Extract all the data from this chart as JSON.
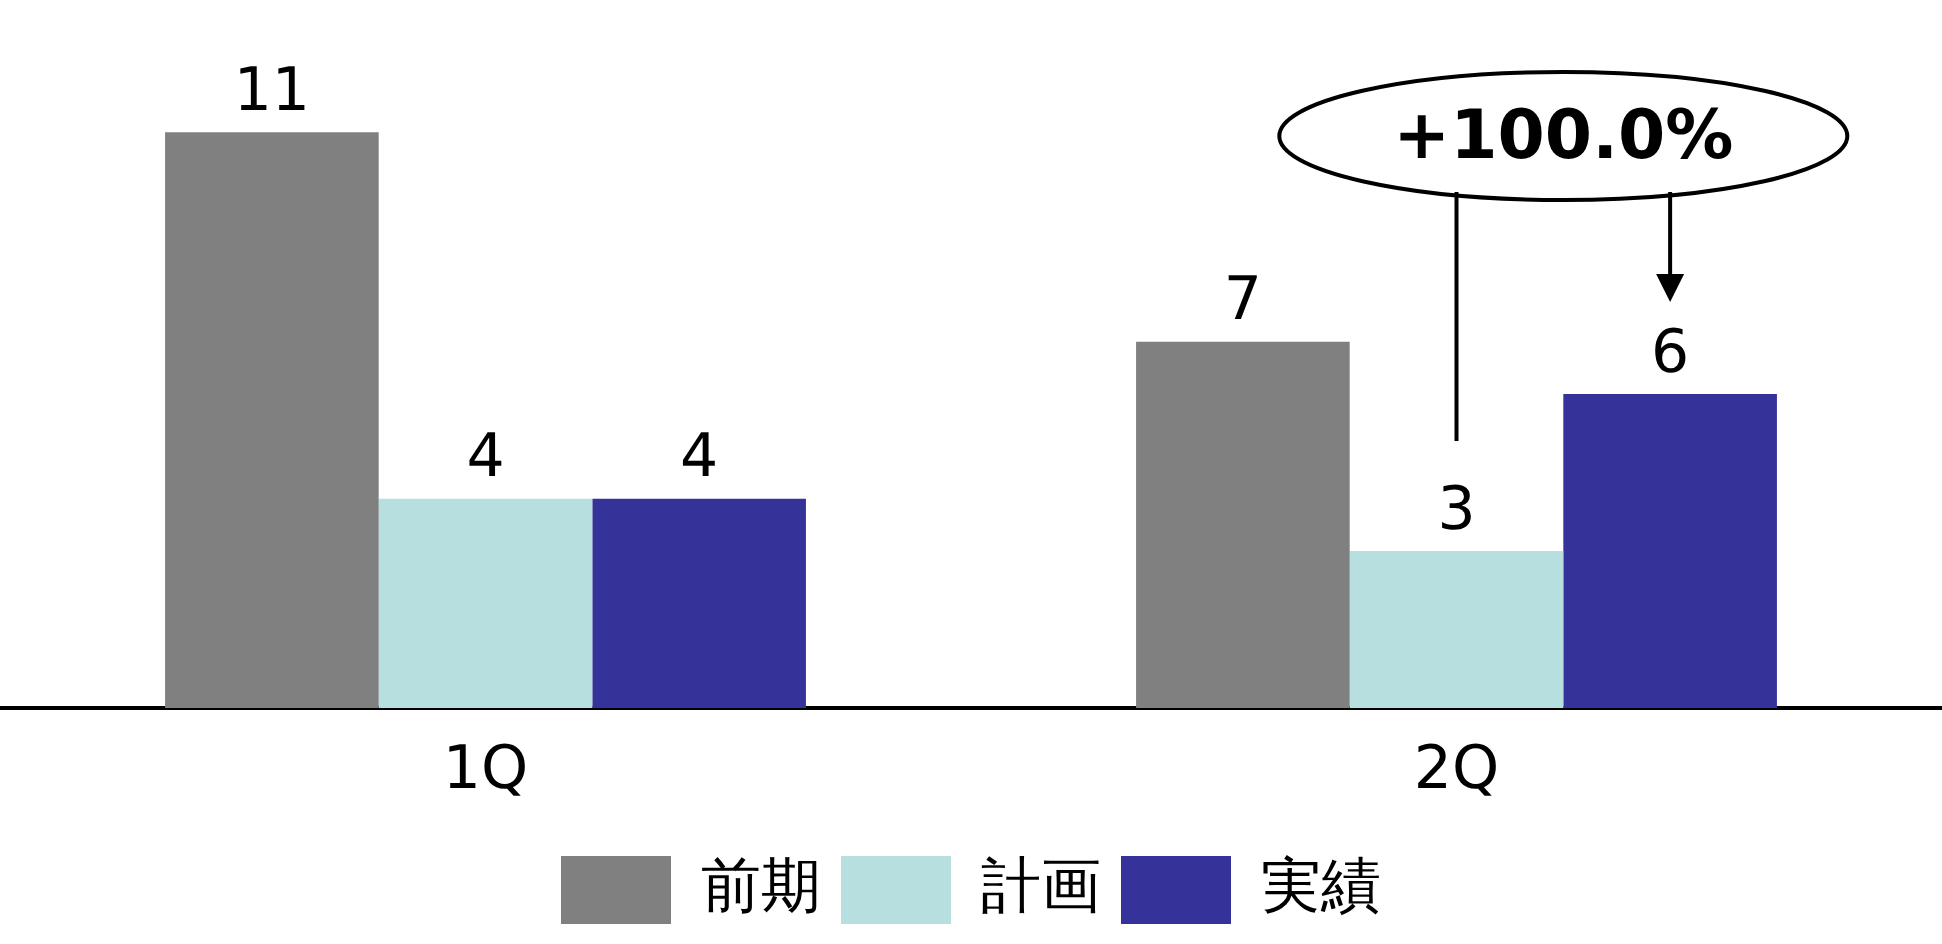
{
  "chart_data": {
    "type": "bar",
    "categories": [
      "1Q",
      "2Q"
    ],
    "series": [
      {
        "name": "前期",
        "color": "#808080",
        "values": [
          11,
          7
        ]
      },
      {
        "name": "計画",
        "color": "#b7dfe0",
        "values": [
          4,
          3
        ]
      },
      {
        "name": "実績",
        "color": "#353399",
        "values": [
          4,
          6
        ]
      }
    ],
    "tick_labels": "x",
    "grid": false,
    "legend": "bottom",
    "data_labels": true,
    "annotations": [
      "+100.0%"
    ]
  }
}
